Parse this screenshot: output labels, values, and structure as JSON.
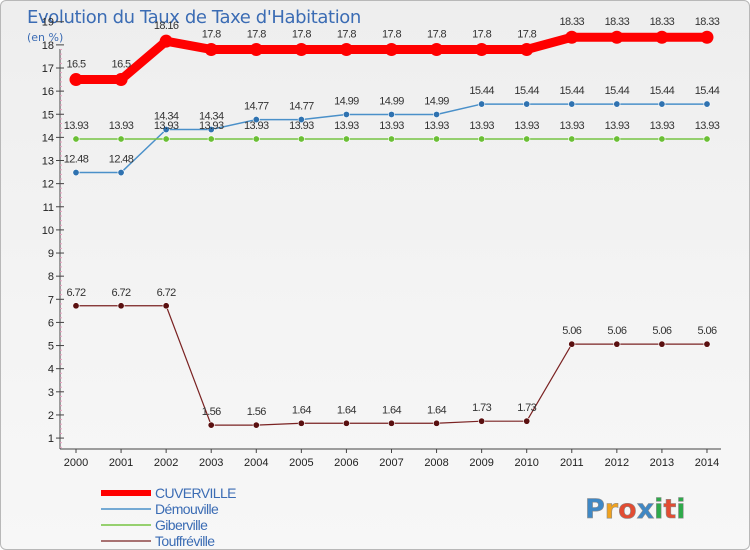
{
  "title": "Evolution du Taux de Taxe d'Habitation",
  "subtitle": "(en %)",
  "brand": {
    "letters": [
      "P",
      "r",
      "o",
      "x",
      "i",
      "t",
      "i"
    ],
    "colors": [
      "#3f88c5",
      "#f0a21f",
      "#e24c32",
      "#3f88c5",
      "#2eaa4a",
      "#e24c32",
      "#2eaa4a"
    ]
  },
  "chart_data": {
    "type": "line",
    "title": "Evolution du Taux de Taxe d'Habitation",
    "ylabel": "(en %)",
    "xlabel": "",
    "x": [
      "2000",
      "2001",
      "2002",
      "2003",
      "2004",
      "2005",
      "2006",
      "2007",
      "2008",
      "2009",
      "2010",
      "2011",
      "2012",
      "2013",
      "2014"
    ],
    "yticks": [
      "1",
      "2",
      "3",
      "4",
      "5",
      "6",
      "7",
      "8",
      "9",
      "10",
      "11",
      "12",
      "13",
      "14",
      "15",
      "16",
      "17",
      "18",
      "19"
    ],
    "ylim": [
      0.5,
      19.4
    ],
    "grid": false,
    "legend_position": "bottom-left",
    "series": [
      {
        "name": "CUVERVILLE",
        "color": "#ff0000",
        "values": [
          16.5,
          16.5,
          18.16,
          17.8,
          17.8,
          17.8,
          17.8,
          17.8,
          17.8,
          17.8,
          17.8,
          18.33,
          18.33,
          18.33,
          18.33
        ],
        "labels": [
          "16.5",
          "16.5",
          "18.16",
          "17.8",
          "17.8",
          "17.8",
          "17.8",
          "17.8",
          "17.8",
          "17.8",
          "17.8",
          "18.33",
          "18.33",
          "18.33",
          "18.33"
        ]
      },
      {
        "name": "Démouville",
        "color": "#4a90c9",
        "values": [
          12.48,
          12.48,
          14.34,
          14.34,
          14.77,
          14.77,
          14.99,
          14.99,
          14.99,
          15.44,
          15.44,
          15.44,
          15.44,
          15.44,
          15.44
        ],
        "labels": [
          "12.48",
          "12.48",
          "14.34",
          "14.34",
          "14.77",
          "14.77",
          "14.99",
          "14.99",
          "14.99",
          "15.44",
          "15.44",
          "15.44",
          "15.44",
          "15.44",
          "15.44"
        ]
      },
      {
        "name": "Giberville",
        "color": "#76c442",
        "values": [
          13.93,
          13.93,
          13.93,
          13.93,
          13.93,
          13.93,
          13.93,
          13.93,
          13.93,
          13.93,
          13.93,
          13.93,
          13.93,
          13.93,
          13.93
        ],
        "labels": [
          "13.93",
          "13.93",
          "13.93",
          "13.93",
          "13.93",
          "13.93",
          "13.93",
          "13.93",
          "13.93",
          "13.93",
          "13.93",
          "13.93",
          "13.93",
          "13.93",
          "13.93"
        ]
      },
      {
        "name": "Touffréville",
        "color": "#7a2222",
        "values": [
          6.72,
          6.72,
          6.72,
          1.56,
          1.56,
          1.64,
          1.64,
          1.64,
          1.64,
          1.73,
          1.73,
          5.06,
          5.06,
          5.06,
          5.06
        ],
        "labels": [
          "6.72",
          "6.72",
          "6.72",
          "1.56",
          "1.56",
          "1.64",
          "1.64",
          "1.64",
          "1.64",
          "1.73",
          "1.73",
          "5.06",
          "5.06",
          "5.06",
          "5.06"
        ]
      }
    ]
  }
}
